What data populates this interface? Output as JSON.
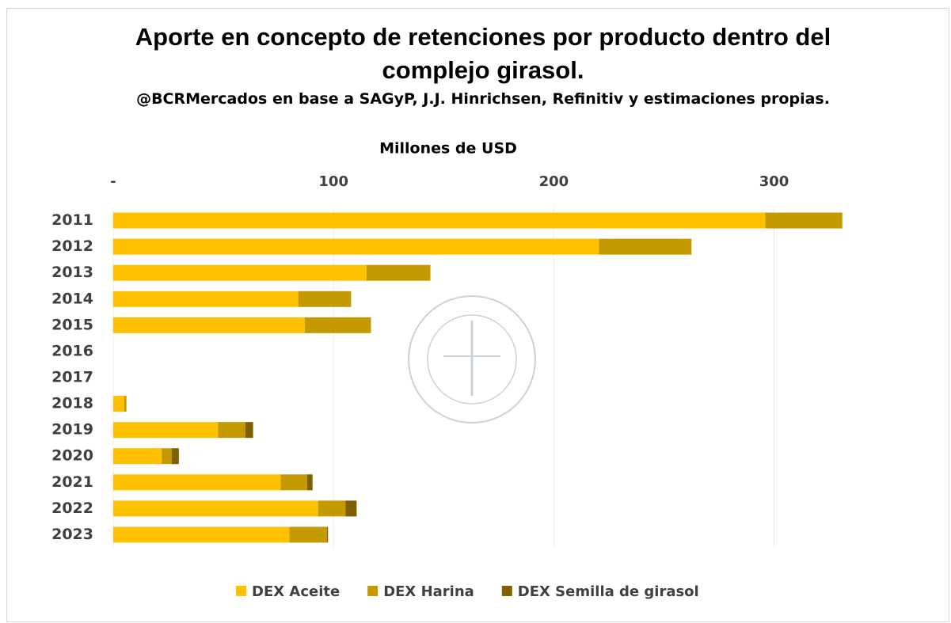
{
  "chart_data": {
    "type": "stacked-barh",
    "title": "Aporte en concepto de retenciones por producto dentro del complejo girasol.",
    "subtitle": "@BCRMercados en base a SAGyP, J.J. Hinrichsen, Refinitiv y estimaciones propias.",
    "x_label": "Millones de USD",
    "categories": [
      "2011",
      "2012",
      "2013",
      "2014",
      "2015",
      "2016",
      "2017",
      "2018",
      "2019",
      "2020",
      "2021",
      "2022",
      "2023"
    ],
    "series": [
      {
        "name": "DEX Aceite",
        "color": "#ffc000",
        "values": [
          296,
          220.5,
          115,
          84,
          87,
          0,
          0,
          5,
          47.5,
          22,
          76,
          93,
          80
        ]
      },
      {
        "name": "DEX Harina",
        "color": "#c59a00",
        "values": [
          35,
          42,
          29,
          24,
          30,
          0,
          0,
          1,
          12.5,
          4.5,
          12,
          12.5,
          17
        ]
      },
      {
        "name": "DEX Semilla de girasol",
        "color": "#7f6000",
        "values": [
          0,
          0,
          0,
          0,
          0,
          0,
          0,
          0,
          3.5,
          3.3,
          2.5,
          5,
          0.5
        ]
      }
    ],
    "xlim": [
      0,
      330
    ],
    "xticks": [
      {
        "value": 0,
        "label": "-"
      },
      100,
      200,
      300
    ],
    "grid": true,
    "legend": "bottom"
  }
}
